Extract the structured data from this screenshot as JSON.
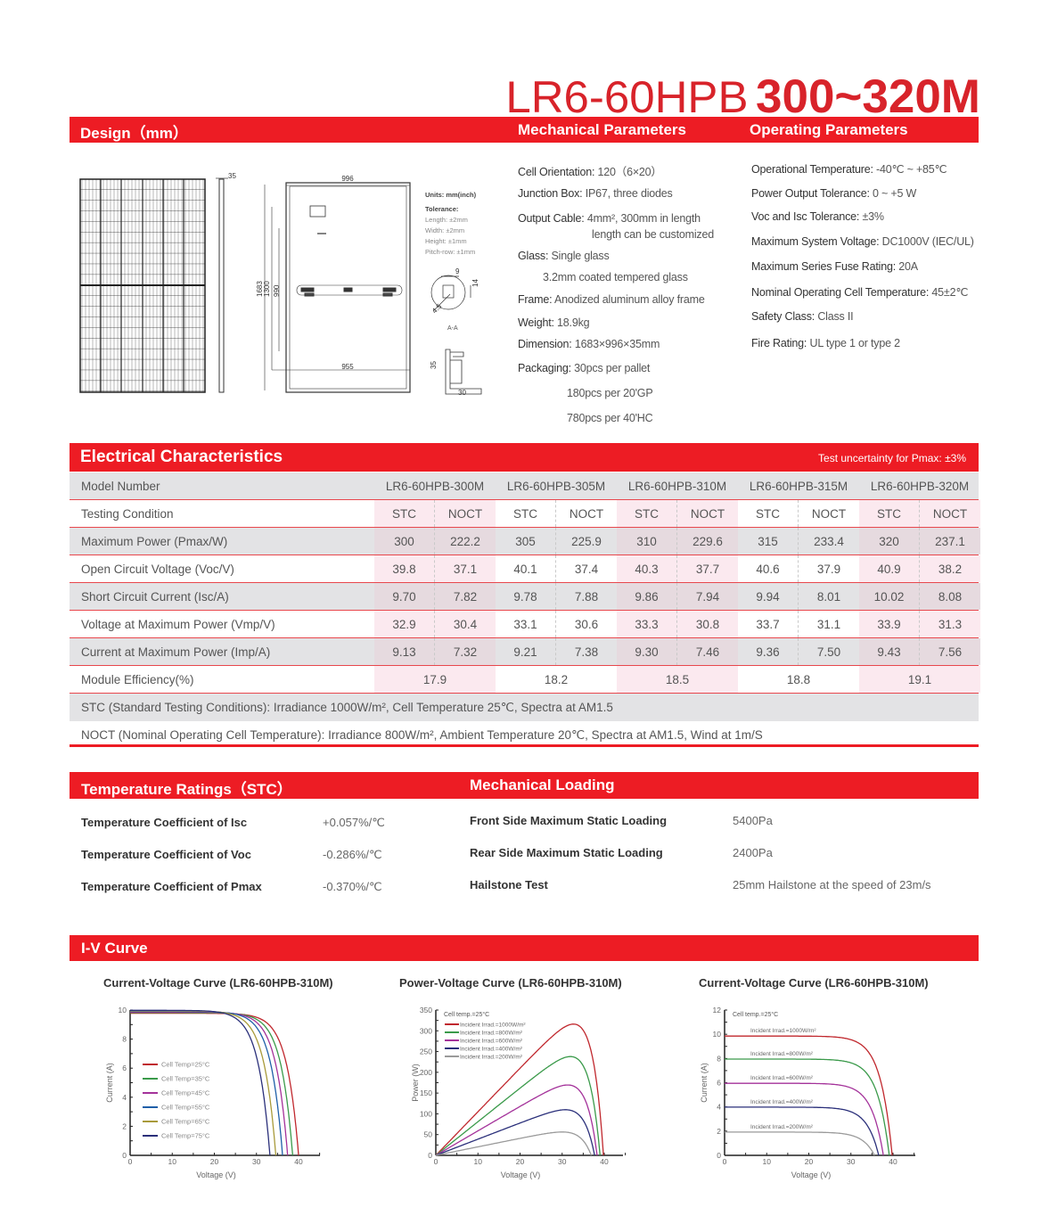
{
  "header": {
    "model_prefix": "LR6-60HPB",
    "power_range": "300~320M"
  },
  "colors": {
    "brand_red": "#ed1c24",
    "title_red": "#d8232a",
    "row_gray": "#e3e3e5",
    "column_pink": "#fbe9ef"
  },
  "sections": {
    "design": "Design（mm）",
    "mechanical_parameters": "Mechanical Parameters",
    "operating_parameters": "Operating Parameters",
    "electrical": "Electrical Characteristics",
    "test_uncertainty": "Test uncertainty for Pmax: ±3%",
    "temperature_ratings": "Temperature Ratings（STC）",
    "mechanical_loading": "Mechanical Loading",
    "iv_curve": "I-V Curve"
  },
  "design": {
    "side_thickness": "35",
    "width": "996",
    "length": "1683",
    "mount_1300": "1300",
    "mount_990": "990",
    "mount_955": "955",
    "units": "Units: mm(inch)",
    "tolerance_title": "Tolerance:",
    "tolerances": [
      "Length: ±2mm",
      "Width: ±2mm",
      "Height: ±1mm",
      "Pitch-row: ±1mm"
    ],
    "hole_width": "9",
    "hole_height": "14",
    "hole_diameter": "4.5",
    "section_label": "A-A",
    "profile_height": "35",
    "profile_width": "30"
  },
  "mechanical": [
    {
      "label": "Cell Orientation:",
      "value": "120（6×20）"
    },
    {
      "label": "Junction Box:",
      "value": "IP67, three diodes"
    },
    {
      "label": "Output Cable:",
      "value": "4mm², 300mm in length"
    },
    {
      "label": "",
      "value": "length can be customized"
    },
    {
      "label": "Glass:",
      "value": "Single glass"
    },
    {
      "label": "",
      "value": "3.2mm coated tempered glass"
    },
    {
      "label": "Frame:",
      "value": "Anodized aluminum alloy frame"
    },
    {
      "label": "Weight:",
      "value": "18.9kg"
    },
    {
      "label": "Dimension:",
      "value": "1683×996×35mm"
    },
    {
      "label": "Packaging:",
      "value": "30pcs per pallet"
    },
    {
      "label": "",
      "value": "180pcs per 20'GP"
    },
    {
      "label": "",
      "value": "780pcs per 40'HC"
    }
  ],
  "operating": [
    {
      "label": "Operational Temperature:",
      "value": "-40℃ ~ +85℃"
    },
    {
      "label": "Power Output Tolerance:",
      "value": "0 ~ +5 W"
    },
    {
      "label": "Voc and Isc Tolerance:",
      "value": "±3%"
    },
    {
      "label": "Maximum System Voltage:",
      "value": "DC1000V (IEC/UL)"
    },
    {
      "label": "Maximum Series Fuse Rating:",
      "value": "20A"
    },
    {
      "label": "Nominal Operating Cell Temperature:",
      "value": "45±2℃"
    },
    {
      "label": "Safety Class:",
      "value": "Class II"
    },
    {
      "label": "Fire Rating:",
      "value": "UL type 1 or type 2"
    }
  ],
  "electrical": {
    "model_label": "Model Number",
    "models": [
      "LR6-60HPB-300M",
      "LR6-60HPB-305M",
      "LR6-60HPB-310M",
      "LR6-60HPB-315M",
      "LR6-60HPB-320M"
    ],
    "condition_label": "Testing Condition",
    "conditions": [
      "STC",
      "NOCT"
    ],
    "rows": [
      {
        "label": "Maximum Power (Pmax/W)",
        "values": [
          "300",
          "222.2",
          "305",
          "225.9",
          "310",
          "229.6",
          "315",
          "233.4",
          "320",
          "237.1"
        ]
      },
      {
        "label": "Open Circuit Voltage (Voc/V)",
        "values": [
          "39.8",
          "37.1",
          "40.1",
          "37.4",
          "40.3",
          "37.7",
          "40.6",
          "37.9",
          "40.9",
          "38.2"
        ]
      },
      {
        "label": "Short Circuit Current (Isc/A)",
        "values": [
          "9.70",
          "7.82",
          "9.78",
          "7.88",
          "9.86",
          "7.94",
          "9.94",
          "8.01",
          "10.02",
          "8.08"
        ]
      },
      {
        "label": "Voltage at Maximum Power (Vmp/V)",
        "values": [
          "32.9",
          "30.4",
          "33.1",
          "30.6",
          "33.3",
          "30.8",
          "33.7",
          "31.1",
          "33.9",
          "31.3"
        ]
      },
      {
        "label": "Current at Maximum Power (Imp/A)",
        "values": [
          "9.13",
          "7.32",
          "9.21",
          "7.38",
          "9.30",
          "7.46",
          "9.36",
          "7.50",
          "9.43",
          "7.56"
        ]
      }
    ],
    "efficiency_label": "Module Efficiency(%)",
    "efficiency": [
      "17.9",
      "18.2",
      "18.5",
      "18.8",
      "19.1"
    ],
    "stc_note": "STC (Standard Testing Conditions): Irradiance 1000W/m², Cell Temperature 25℃, Spectra at AM1.5",
    "noct_note": "NOCT (Nominal Operating Cell Temperature): Irradiance 800W/m², Ambient Temperature 20℃, Spectra at AM1.5, Wind at 1m/S"
  },
  "temperature": [
    {
      "label": "Temperature Coefficient of  Isc",
      "value": "+0.057%/℃"
    },
    {
      "label": "Temperature Coefficient of  Voc",
      "value": "-0.286%/℃"
    },
    {
      "label": "Temperature Coefficient of  Pmax",
      "value": "-0.370%/℃"
    }
  ],
  "loading": [
    {
      "label": "Front Side Maximum Static Loading",
      "value": "5400Pa"
    },
    {
      "label": "Rear Side Maximum Static Loading",
      "value": "2400Pa"
    },
    {
      "label": "Hailstone Test",
      "value": "25mm Hailstone at the speed of 23m/s"
    }
  ],
  "chart_data": [
    {
      "type": "line",
      "title": "Current-Voltage Curve (LR6-60HPB-310M)",
      "xlabel": "Voltage (V)",
      "ylabel": "Current (A)",
      "xlim": [
        0,
        45
      ],
      "ylim": [
        0,
        10
      ],
      "xticks": [
        "0",
        "10",
        "20",
        "30",
        "40"
      ],
      "yticks": [
        "0",
        "2",
        "4",
        "6",
        "8",
        "10"
      ],
      "annotation": "",
      "quantity": "current",
      "legend": "left",
      "series": [
        {
          "name": "Cell Temp=25°C",
          "color": "#c0272d",
          "isc": 9.78,
          "voc": 40.0
        },
        {
          "name": "Cell Temp=35°C",
          "color": "#3a9a4a",
          "isc": 9.82,
          "voc": 38.6
        },
        {
          "name": "Cell Temp=45°C",
          "color": "#a4329a",
          "isc": 9.86,
          "voc": 37.4
        },
        {
          "name": "Cell Temp=55°C",
          "color": "#1f5fa8",
          "isc": 9.9,
          "voc": 36.2
        },
        {
          "name": "Cell Temp=65°C",
          "color": "#a89a3a",
          "isc": 9.94,
          "voc": 34.6
        },
        {
          "name": "Cell Temp=75°C",
          "color": "#2a2f7a",
          "isc": 9.98,
          "voc": 33.2
        }
      ]
    },
    {
      "type": "line",
      "title": "Power-Voltage Curve (LR6-60HPB-310M)",
      "xlabel": "Voltage (V)",
      "ylabel": "Power (W)",
      "xlim": [
        0,
        45
      ],
      "ylim": [
        0,
        350
      ],
      "xticks": [
        "0",
        "10",
        "20",
        "30",
        "40"
      ],
      "yticks": [
        "0",
        "50",
        "100",
        "150",
        "200",
        "250",
        "300",
        "350"
      ],
      "annotation": "Cell temp.=25°C",
      "quantity": "power",
      "legend": "top-left",
      "series": [
        {
          "name": "Incident Irrad.=1000W/m²",
          "color": "#c0272d",
          "isc": 10.5,
          "voc": 39.8
        },
        {
          "name": "Incident Irrad.=800W/m²",
          "color": "#3a9a4a",
          "isc": 8.1,
          "voc": 39.0
        },
        {
          "name": "Incident Irrad.=600W/m²",
          "color": "#a4329a",
          "isc": 5.9,
          "voc": 38.3
        },
        {
          "name": "Incident Irrad.=400W/m²",
          "color": "#2a2f7a",
          "isc": 3.9,
          "voc": 37.7
        },
        {
          "name": "Incident Irrad.=200W/m²",
          "color": "#9a9a9a",
          "isc": 2.05,
          "voc": 36.9
        }
      ]
    },
    {
      "type": "line",
      "title": "Current-Voltage Curve (LR6-60HPB-310M)",
      "xlabel": "Voltage (V)",
      "ylabel": "Current (A)",
      "xlim": [
        0,
        45
      ],
      "ylim": [
        0,
        12
      ],
      "xticks": [
        "0",
        "10",
        "20",
        "30",
        "40"
      ],
      "yticks": [
        "0",
        "2",
        "4",
        "6",
        "8",
        "10",
        "12"
      ],
      "annotation": "Cell temp.=25°C",
      "quantity": "current",
      "legend": "inline",
      "series": [
        {
          "name": "Incident Irrad.=1000W/m²",
          "color": "#c0272d",
          "isc": 9.85,
          "voc": 39.8
        },
        {
          "name": "Incident Irrad.=800W/m²",
          "color": "#3a9a4a",
          "isc": 7.95,
          "voc": 39.1
        },
        {
          "name": "Incident Irrad.=600W/m²",
          "color": "#a4329a",
          "isc": 5.95,
          "voc": 37.7
        },
        {
          "name": "Incident Irrad.=400W/m²",
          "color": "#2a2f7a",
          "isc": 3.98,
          "voc": 36.6
        },
        {
          "name": "Incident Irrad.=200W/m²",
          "color": "#9a9a9a",
          "isc": 1.92,
          "voc": 35.6
        }
      ]
    }
  ]
}
